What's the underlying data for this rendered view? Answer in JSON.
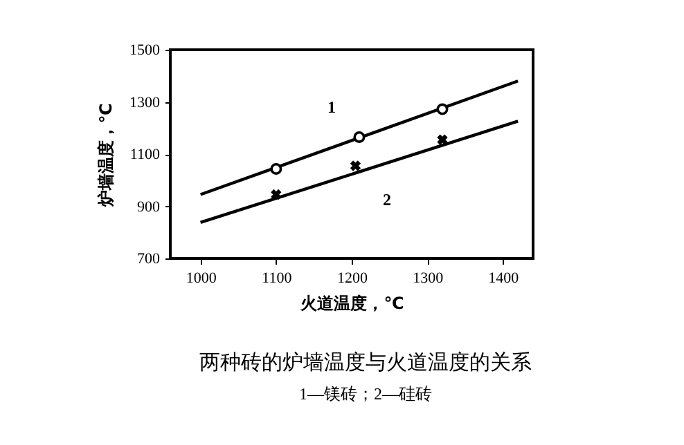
{
  "chart_data": {
    "type": "line",
    "title": "两种砖的炉墙温度与火道温度的关系",
    "subtitle": "1—镁砖；2—硅砖",
    "xlabel": "火道温度，℃",
    "ylabel": "炉墙温度，℃",
    "xlim": [
      960,
      1440
    ],
    "xticks": [
      1000,
      1100,
      1200,
      1300,
      1400
    ],
    "ylim": [
      700,
      1500
    ],
    "yticks": [
      700,
      900,
      1100,
      1300,
      1500
    ],
    "grid": false,
    "series": [
      {
        "name": "1",
        "color": "#000000",
        "marker": "none",
        "x": [
          1000,
          1420
        ],
        "values": [
          945,
          1380
        ]
      },
      {
        "name": "2",
        "color": "#000000",
        "marker": "none",
        "x": [
          1000,
          1420
        ],
        "values": [
          838,
          1226
        ]
      },
      {
        "type": "scatter",
        "color": "#000000",
        "marker": "circle",
        "x": [
          1100,
          1210,
          1320
        ],
        "values": [
          1043,
          1165,
          1272
        ]
      },
      {
        "type": "scatter",
        "color": "#000000",
        "marker": "cross",
        "x": [
          1100,
          1205,
          1320
        ],
        "values": [
          945,
          1055,
          1155
        ]
      }
    ]
  }
}
